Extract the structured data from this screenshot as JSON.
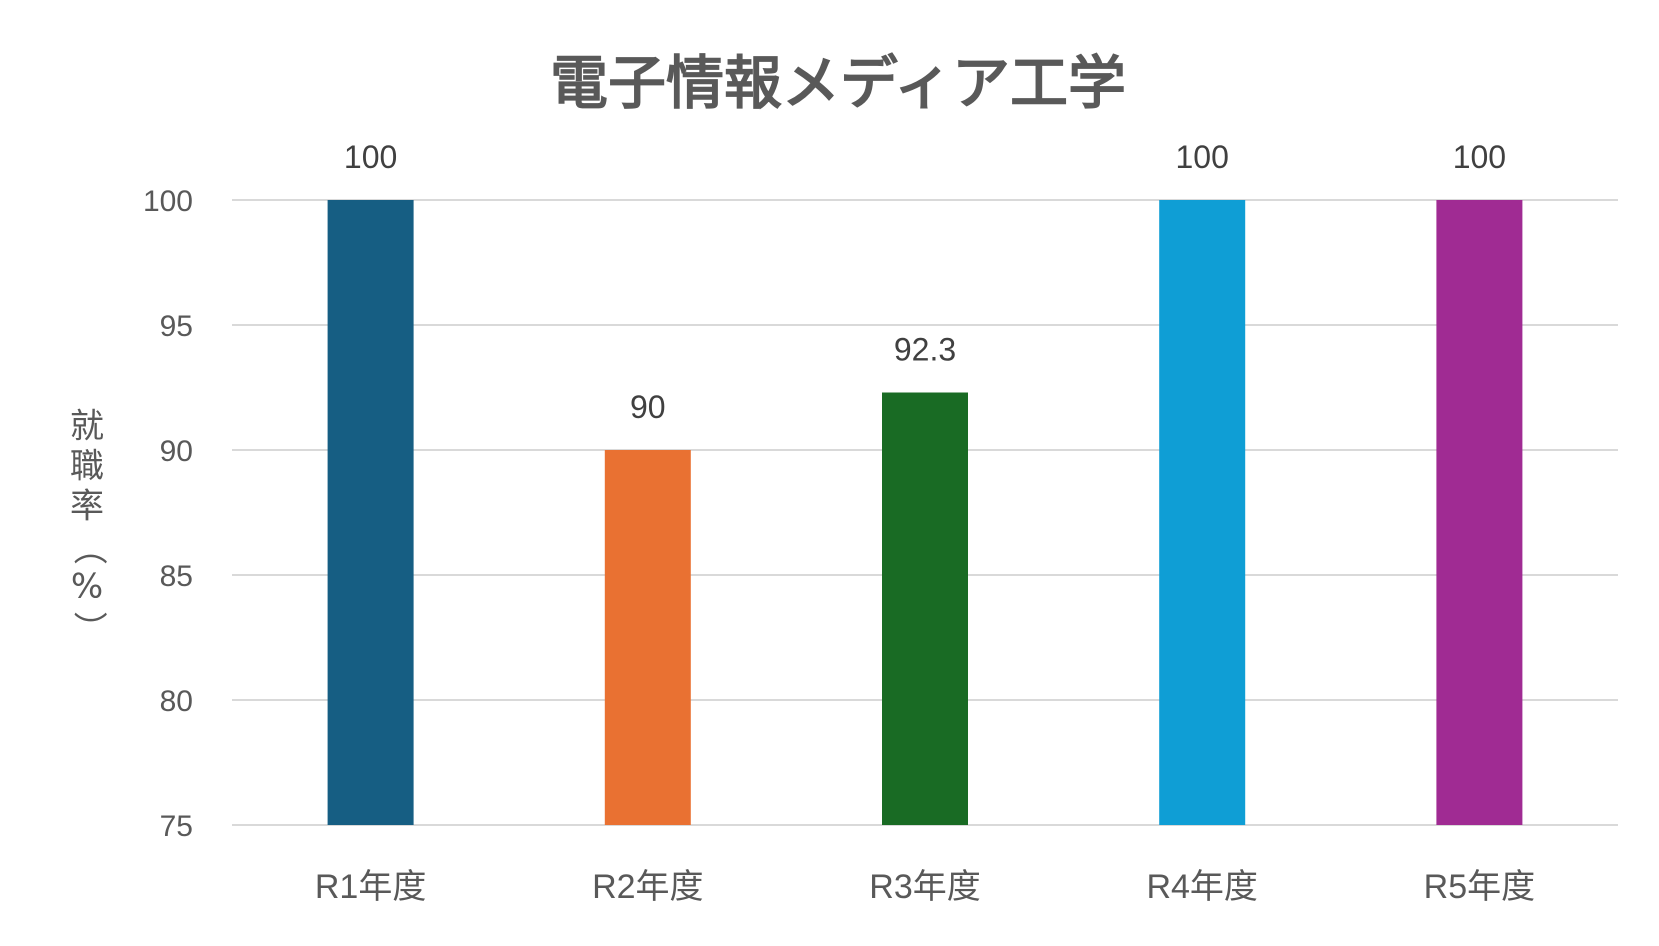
{
  "chart_data": {
    "type": "bar",
    "title": "電子情報メディア工学",
    "ylabel": "就職率（%）",
    "xlabel": "",
    "categories": [
      "R1年度",
      "R2年度",
      "R3年度",
      "R4年度",
      "R5年度"
    ],
    "values": [
      100,
      90,
      92.3,
      100,
      100
    ],
    "data_labels": [
      "100",
      "90",
      "92.3",
      "100",
      "100"
    ],
    "colors": [
      "#165e83",
      "#e97132",
      "#196b24",
      "#0f9ed5",
      "#a02b93"
    ],
    "ylim": [
      75,
      100
    ],
    "yticks": [
      75,
      80,
      85,
      90,
      95,
      100
    ],
    "grid": true,
    "legend": "none"
  }
}
